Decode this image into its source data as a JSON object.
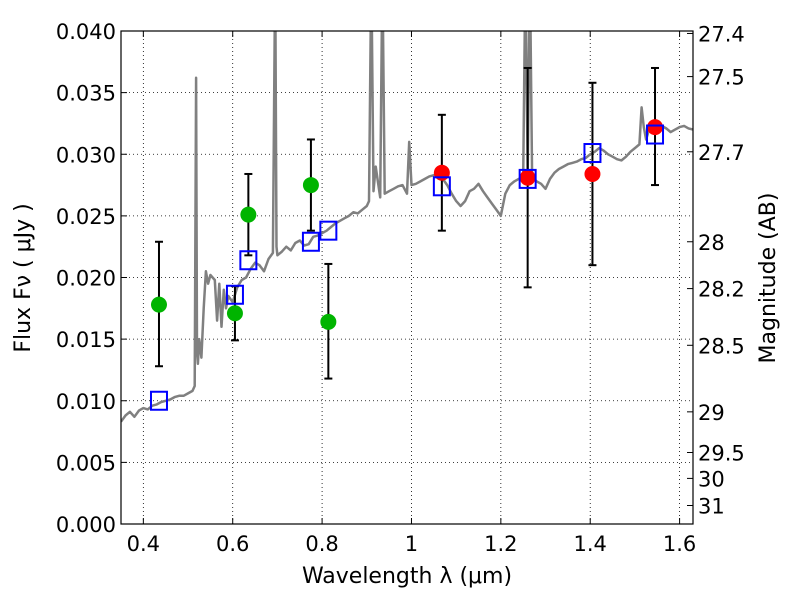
{
  "chart_data": {
    "type": "scatter",
    "xlabel": "Wavelength  λ (μm)",
    "ylabel_left": "Flux  Fν ( μJy )",
    "ylabel_right": "Magnitude (AB)",
    "xlim": [
      0.35,
      1.63
    ],
    "ylim": [
      0.0,
      0.04
    ],
    "x_ticks": [
      0.4,
      0.6,
      0.8,
      1.0,
      1.2,
      1.4,
      1.6
    ],
    "x_tick_labels": [
      "0.4",
      "0.6",
      "0.8",
      "1",
      "1.2",
      "1.4",
      "1.6"
    ],
    "y_ticks": [
      0.0,
      0.005,
      0.01,
      0.015,
      0.02,
      0.025,
      0.03,
      0.035,
      0.04
    ],
    "y_tick_labels": [
      "0.000",
      "0.005",
      "0.010",
      "0.015",
      "0.020",
      "0.025",
      "0.030",
      "0.035",
      "0.040"
    ],
    "right_ticks": [
      {
        "label": "27.4",
        "flux": 0.0398
      },
      {
        "label": "27.5",
        "flux": 0.0363
      },
      {
        "label": "27.7",
        "flux": 0.0302
      },
      {
        "label": "28",
        "flux": 0.0229
      },
      {
        "label": "28.2",
        "flux": 0.0191
      },
      {
        "label": "28.5",
        "flux": 0.0145
      },
      {
        "label": "29",
        "flux": 0.0091
      },
      {
        "label": "29.5",
        "flux": 0.0058
      },
      {
        "label": "30",
        "flux": 0.0037
      },
      {
        "label": "31",
        "flux": 0.0015
      }
    ],
    "grid": true,
    "colors": {
      "model": "#808080",
      "green": "#00b400",
      "red": "#ff0000",
      "blue": "#0000ff",
      "errorbar": "#000000"
    },
    "model_spectrum": {
      "x": [
        0.35,
        0.36,
        0.37,
        0.38,
        0.39,
        0.4,
        0.41,
        0.42,
        0.43,
        0.44,
        0.45,
        0.46,
        0.47,
        0.48,
        0.49,
        0.5,
        0.51,
        0.515,
        0.518,
        0.52,
        0.522,
        0.525,
        0.53,
        0.535,
        0.54,
        0.545,
        0.55,
        0.56,
        0.565,
        0.57,
        0.575,
        0.58,
        0.585,
        0.59,
        0.6,
        0.61,
        0.62,
        0.63,
        0.64,
        0.65,
        0.66,
        0.67,
        0.68,
        0.69,
        0.695,
        0.698,
        0.7,
        0.71,
        0.72,
        0.73,
        0.74,
        0.75,
        0.76,
        0.77,
        0.78,
        0.79,
        0.8,
        0.81,
        0.82,
        0.83,
        0.84,
        0.85,
        0.86,
        0.87,
        0.88,
        0.89,
        0.9,
        0.905,
        0.91,
        0.915,
        0.92,
        0.93,
        0.935,
        0.94,
        0.95,
        0.96,
        0.97,
        0.98,
        0.99,
        0.995,
        1.0,
        1.01,
        1.02,
        1.03,
        1.04,
        1.05,
        1.06,
        1.07,
        1.08,
        1.09,
        1.1,
        1.11,
        1.12,
        1.13,
        1.14,
        1.15,
        1.16,
        1.17,
        1.18,
        1.19,
        1.2,
        1.21,
        1.22,
        1.23,
        1.24,
        1.25,
        1.255,
        1.26,
        1.265,
        1.27,
        1.28,
        1.29,
        1.3,
        1.31,
        1.32,
        1.33,
        1.34,
        1.35,
        1.36,
        1.37,
        1.38,
        1.39,
        1.4,
        1.41,
        1.42,
        1.43,
        1.44,
        1.45,
        1.46,
        1.47,
        1.48,
        1.49,
        1.5,
        1.51,
        1.515,
        1.52,
        1.525,
        1.53,
        1.54,
        1.55,
        1.56,
        1.57,
        1.58,
        1.59,
        1.6,
        1.61,
        1.62,
        1.63
      ],
      "y": [
        0.0083,
        0.0088,
        0.0091,
        0.0087,
        0.0092,
        0.0094,
        0.0093,
        0.0096,
        0.0097,
        0.0099,
        0.01,
        0.0101,
        0.0103,
        0.0104,
        0.0104,
        0.0106,
        0.0108,
        0.0112,
        0.0362,
        0.014,
        0.013,
        0.015,
        0.0135,
        0.0175,
        0.0205,
        0.0195,
        0.0202,
        0.0198,
        0.0165,
        0.0195,
        0.016,
        0.019,
        0.0175,
        0.0185,
        0.018,
        0.0192,
        0.0198,
        0.02,
        0.0207,
        0.0212,
        0.021,
        0.0205,
        0.0215,
        0.022,
        0.045,
        0.0225,
        0.0218,
        0.0221,
        0.0225,
        0.0222,
        0.0228,
        0.023,
        0.0226,
        0.0227,
        0.0233,
        0.0234,
        0.0236,
        0.0238,
        0.0241,
        0.0244,
        0.0246,
        0.0248,
        0.025,
        0.0253,
        0.0252,
        0.0255,
        0.0258,
        0.0262,
        0.045,
        0.027,
        0.029,
        0.0265,
        0.045,
        0.0268,
        0.027,
        0.0272,
        0.0274,
        0.0275,
        0.0268,
        0.031,
        0.0275,
        0.0276,
        0.0278,
        0.028,
        0.0282,
        0.0283,
        0.0285,
        0.028,
        0.0275,
        0.0268,
        0.0262,
        0.0258,
        0.0262,
        0.027,
        0.0272,
        0.0276,
        0.027,
        0.0265,
        0.026,
        0.0255,
        0.025,
        0.0268,
        0.0275,
        0.0278,
        0.028,
        0.0282,
        0.045,
        0.0285,
        0.045,
        0.0282,
        0.0278,
        0.0276,
        0.0272,
        0.028,
        0.0285,
        0.0288,
        0.029,
        0.0292,
        0.0293,
        0.0294,
        0.0296,
        0.0297,
        0.03,
        0.0302,
        0.0305,
        0.0303,
        0.03,
        0.0298,
        0.0296,
        0.0295,
        0.0298,
        0.0302,
        0.0305,
        0.0308,
        0.0338,
        0.0322,
        0.0312,
        0.0318,
        0.032,
        0.0322,
        0.0323,
        0.0321,
        0.0318,
        0.032,
        0.0322,
        0.0323,
        0.0321,
        0.032
      ]
    },
    "green_points": [
      {
        "x": 0.435,
        "y": 0.0178,
        "err_lo": 0.0128,
        "err_hi": 0.0229
      },
      {
        "x": 0.605,
        "y": 0.0171,
        "err_lo": 0.0149,
        "err_hi": 0.0193
      },
      {
        "x": 0.635,
        "y": 0.0251,
        "err_lo": 0.0218,
        "err_hi": 0.0284
      },
      {
        "x": 0.775,
        "y": 0.0275,
        "err_lo": 0.0238,
        "err_hi": 0.0312
      },
      {
        "x": 0.814,
        "y": 0.0164,
        "err_lo": 0.0118,
        "err_hi": 0.0211
      }
    ],
    "red_points": [
      {
        "x": 1.068,
        "y": 0.0285,
        "err_lo": 0.0238,
        "err_hi": 0.0332
      },
      {
        "x": 1.26,
        "y": 0.0281,
        "err_lo": 0.0192,
        "err_hi": 0.037
      },
      {
        "x": 1.405,
        "y": 0.0284,
        "err_lo": 0.021,
        "err_hi": 0.0358
      },
      {
        "x": 1.545,
        "y": 0.0322,
        "err_lo": 0.0275,
        "err_hi": 0.037
      }
    ],
    "blue_squares": [
      {
        "x": 0.435,
        "y": 0.01
      },
      {
        "x": 0.605,
        "y": 0.0186
      },
      {
        "x": 0.635,
        "y": 0.0214
      },
      {
        "x": 0.775,
        "y": 0.0229
      },
      {
        "x": 0.814,
        "y": 0.0238
      },
      {
        "x": 1.068,
        "y": 0.0274
      },
      {
        "x": 1.26,
        "y": 0.028
      },
      {
        "x": 1.405,
        "y": 0.0301
      },
      {
        "x": 1.545,
        "y": 0.0316
      }
    ]
  }
}
